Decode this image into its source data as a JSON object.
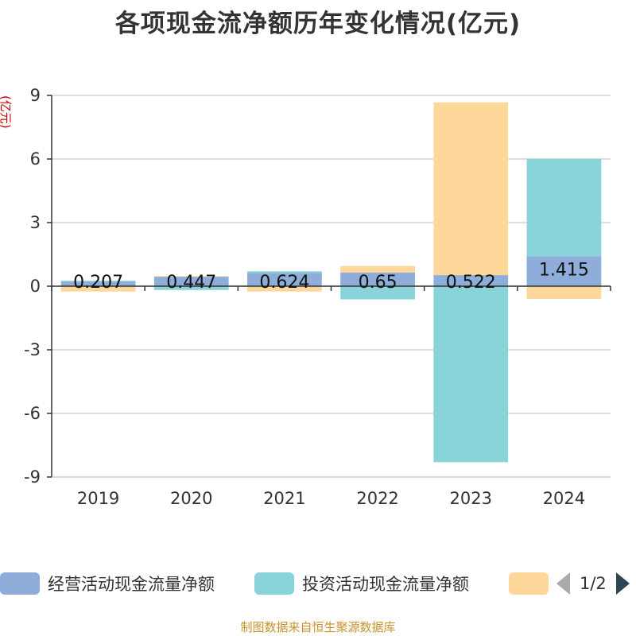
{
  "title": "各项现金流净额历年变化情况(亿元)",
  "source": "制图数据来自恒生聚源数据库",
  "pager": {
    "indicator": "1/2",
    "prev_icon": "triangle-left-icon",
    "next_icon": "triangle-right-icon"
  },
  "chart_data": {
    "type": "bar",
    "stacked": true,
    "ylabel": "(亿元)",
    "ylim": [
      -9,
      9
    ],
    "yticks": [
      9,
      6,
      3,
      0,
      -3,
      -6,
      -9
    ],
    "grid": true,
    "legend_position": "bottom",
    "categories": [
      "2019",
      "2020",
      "2021",
      "2022",
      "2023",
      "2024"
    ],
    "series": [
      {
        "name": "经营活动现金流量净额",
        "color": "#8eadd9",
        "values": [
          0.207,
          0.447,
          0.624,
          0.65,
          0.522,
          1.415
        ],
        "show_labels": true
      },
      {
        "name": "投资活动现金流量净额",
        "color": "#88d4d8",
        "values": [
          0.05,
          -0.18,
          0.08,
          -0.62,
          -8.3,
          4.6
        ],
        "show_labels": false
      },
      {
        "name": "",
        "color": "#fdd89a",
        "values": [
          -0.25,
          0.03,
          -0.25,
          0.3,
          8.15,
          -0.6
        ],
        "show_labels": false
      }
    ]
  }
}
